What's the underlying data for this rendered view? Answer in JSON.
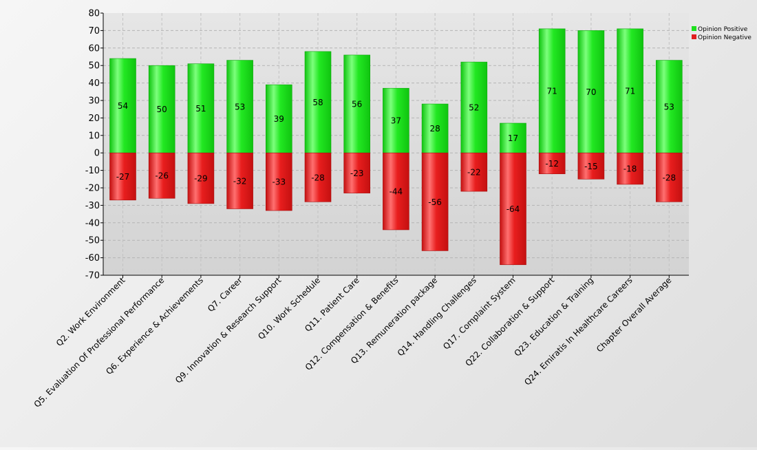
{
  "chart_data": {
    "type": "bar",
    "stacked": true,
    "categories": [
      "Q2. Work Environment",
      "Q5. Evaluation Of Professional Performance",
      "Q6. Experience & Achievements",
      "Q7. Career",
      "Q9. Innovation & Research Support",
      "Q10. Work Schedule",
      "Q11. Patient Care",
      "Q12. Compensation & Benefits",
      "Q13. Remuneration package",
      "Q14. Handling Challenges",
      "Q17. Complaint System",
      "Q22. Collaboration & Support",
      "Q23. Education & Training",
      "Q24. Emiratis In Healthcare Careers",
      "Chapter Overall Average"
    ],
    "series": [
      {
        "name": "Opinion Positive",
        "color": "#1ee01e",
        "values": [
          54,
          50,
          51,
          53,
          39,
          58,
          56,
          37,
          28,
          52,
          17,
          71,
          70,
          71,
          53
        ]
      },
      {
        "name": "Opinion Negative",
        "color": "#e01e1e",
        "values": [
          -27,
          -26,
          -29,
          -32,
          -33,
          -28,
          -23,
          -44,
          -56,
          -22,
          -64,
          -12,
          -15,
          -18,
          -28
        ]
      }
    ],
    "ylim": [
      -70,
      80
    ],
    "yticks": [
      80,
      70,
      60,
      50,
      40,
      30,
      20,
      10,
      0,
      -10,
      -20,
      -30,
      -40,
      -50,
      -60,
      -70
    ],
    "grid": true,
    "legend_position": "top-right",
    "title": "",
    "xlabel": "",
    "ylabel": ""
  }
}
